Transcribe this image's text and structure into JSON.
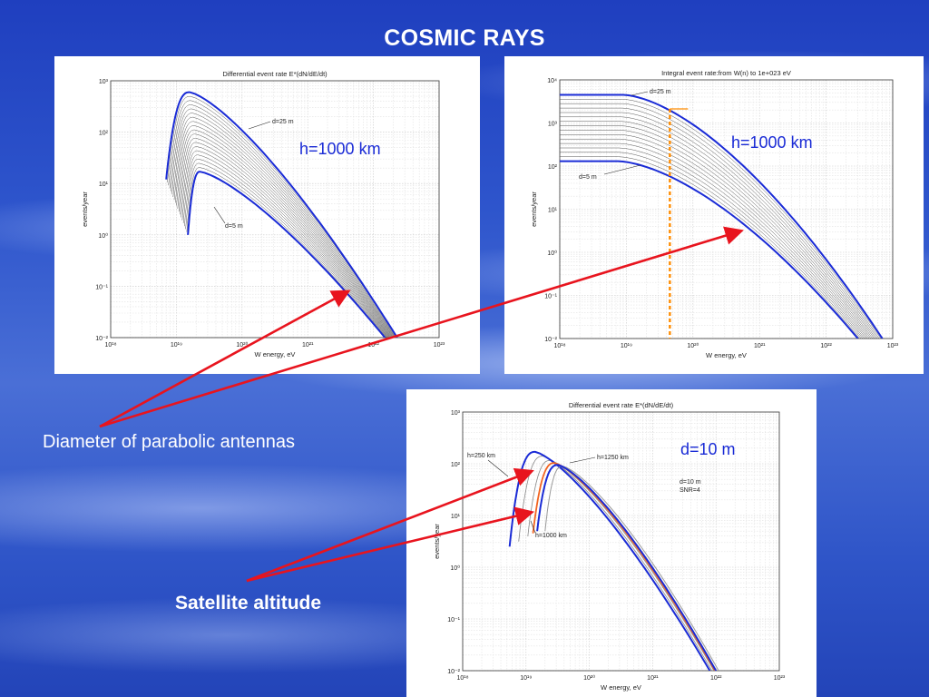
{
  "slide": {
    "title": "COSMIC RAYS"
  },
  "labels": {
    "diameter": "Diameter of parabolic antennas",
    "altitude": "Satellite altitude"
  },
  "colors": {
    "curve": "#1a2bd6",
    "thin": "#555555",
    "arrow": "#e8141e",
    "marker": "#ff8c00",
    "highlight": "#f26522"
  },
  "chart_data": [
    {
      "type": "line",
      "title": "Differential event rate E*(dN/dE/dt)",
      "overlay": "h=1000 km",
      "xlabel": "W energy, eV",
      "ylabel": "events/year",
      "xscale": "log",
      "yscale": "log",
      "xlim": [
        1e+18,
        1e+23
      ],
      "ylim": [
        0.01,
        1000
      ],
      "grid": true,
      "xticks": [
        "10¹⁸",
        "10¹⁹",
        "10²⁰",
        "10²¹",
        "10²²",
        "10²³"
      ],
      "yticks": [
        "10⁻²",
        "10⁻¹",
        "10⁰",
        "10¹",
        "10²",
        "10³"
      ],
      "annotations": [
        "d=25 m",
        "d=5 m"
      ],
      "series": [
        {
          "name": "d=25 m",
          "peak_x": 1.6e+19,
          "peak_y": 600,
          "start_x": 7e+18,
          "start_y": 12,
          "end_x": 2.3e+22,
          "end_y": 0.01
        },
        {
          "name": "d=5 m",
          "peak_x": 2.3e+19,
          "peak_y": 17,
          "start_x": 1.5e+19,
          "start_y": 1,
          "end_x": 1.5e+22,
          "end_y": 0.01
        }
      ]
    },
    {
      "type": "line",
      "title": "Integral event rate:from W(n) to 1e+023 eV",
      "overlay": "h=1000 km",
      "xlabel": "W  energy, eV",
      "ylabel": "events/year",
      "xscale": "log",
      "yscale": "log",
      "xlim": [
        1e+18,
        1e+23
      ],
      "ylim": [
        0.01,
        10000
      ],
      "grid": true,
      "xticks": [
        "10¹⁸",
        "10¹⁹",
        "10²⁰",
        "10²¹",
        "10²²",
        "10²³"
      ],
      "yticks": [
        "10⁻²",
        "10⁻¹",
        "10⁰",
        "10¹",
        "10²",
        "10³",
        "10⁴"
      ],
      "annotations": [
        "d=25 m",
        "d=5 m"
      ],
      "threshold_x": 4.5e+19,
      "series": [
        {
          "name": "d=25 m",
          "plateau_y": 4500,
          "knee_x": 1.8e+19,
          "end_x": 7e+22,
          "end_y": 0.01
        },
        {
          "name": "d=5 m",
          "plateau_y": 130,
          "knee_x": 1.5e+19,
          "end_x": 3e+22,
          "end_y": 0.01
        }
      ]
    },
    {
      "type": "line",
      "title": "Differential event rate E*(dN/dE/dt)",
      "overlay": "d=10 m",
      "xlabel": "W energy, eV",
      "ylabel": "events/year",
      "xscale": "log",
      "yscale": "log",
      "xlim": [
        1e+18,
        1e+23
      ],
      "ylim": [
        0.01,
        1000
      ],
      "grid": true,
      "xticks": [
        "10¹⁸",
        "10¹⁹",
        "10²⁰",
        "10²¹",
        "10²²",
        "10²³"
      ],
      "yticks": [
        "10⁻²",
        "10⁻¹",
        "10⁰",
        "10¹",
        "10²",
        "10³"
      ],
      "legend_text": [
        "d=10 m",
        "SNR=4"
      ],
      "annotations": [
        "h=250 km",
        "h=1250 km",
        "h=1000 km"
      ],
      "series": [
        {
          "name": "h=250 km",
          "start_x": 5.5e+18,
          "start_y": 2.5,
          "peak_x": 1.4e+19,
          "peak_y": 170,
          "end_x": 8e+21,
          "end_y": 0.01
        },
        {
          "name": "h=1000 km",
          "start_x": 1.5e+19,
          "start_y": 5,
          "peak_x": 3.2e+19,
          "peak_y": 95,
          "end_x": 1e+22,
          "end_y": 0.01
        },
        {
          "name": "h=1250 km",
          "start_x": 2e+19,
          "start_y": 5,
          "peak_x": 3.8e+19,
          "peak_y": 90,
          "end_x": 1.1e+22,
          "end_y": 0.01
        }
      ]
    }
  ]
}
